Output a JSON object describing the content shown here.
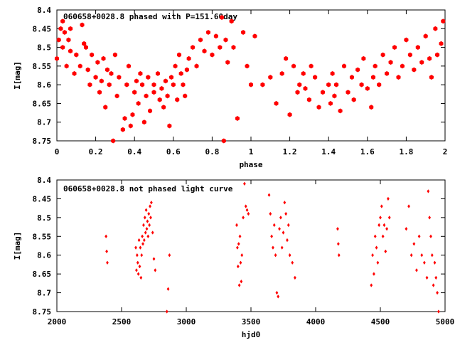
{
  "chart_data": [
    {
      "type": "scatter",
      "title": "060658+0028.8 phased with P=151.60day",
      "xlabel": "phase",
      "ylabel": "I[mag]",
      "xlim": [
        0,
        2
      ],
      "ylim": [
        8.75,
        8.4
      ],
      "y_inverted": true,
      "grid": false,
      "x_ticks": [
        "0",
        "0.2",
        "0.4",
        "0.6",
        "0.8",
        "1",
        "1.2",
        "1.4",
        "1.6",
        "1.8",
        "2"
      ],
      "y_ticks": [
        "8.4",
        "8.45",
        "8.5",
        "8.55",
        "8.6",
        "8.65",
        "8.7",
        "8.75"
      ],
      "marker": "filled hexagon",
      "color": "#ff0000",
      "series": [
        {
          "x": [
            0.0,
            0.01,
            0.02,
            0.03,
            0.03,
            0.04,
            0.05,
            0.06,
            0.07,
            0.07,
            0.09,
            0.1,
            0.12,
            0.13,
            0.14,
            0.15,
            0.16,
            0.17,
            0.18,
            0.2,
            0.21,
            0.22,
            0.23,
            0.24,
            0.25,
            0.26,
            0.27,
            0.28,
            0.29,
            0.3,
            0.31,
            0.32,
            0.34,
            0.35,
            0.36,
            0.37,
            0.38,
            0.39,
            0.4,
            0.41,
            0.42,
            0.43,
            0.44,
            0.45,
            0.46,
            0.47,
            0.48,
            0.5,
            0.5,
            0.52,
            0.53,
            0.54,
            0.55,
            0.56,
            0.57,
            0.58,
            0.59,
            0.6,
            0.61,
            0.62,
            0.63,
            0.64,
            0.65,
            0.66,
            0.67,
            0.68,
            0.7,
            0.72,
            0.74,
            0.76,
            0.78,
            0.8,
            0.82,
            0.84,
            0.85,
            0.86,
            0.87,
            0.88,
            0.9,
            0.91,
            0.93,
            0.96,
            0.98,
            1.0,
            1.02,
            1.06,
            1.1,
            1.13,
            1.16,
            1.18,
            1.2,
            1.22,
            1.24,
            1.25,
            1.27,
            1.28,
            1.3,
            1.31,
            1.33,
            1.35,
            1.37,
            1.4,
            1.41,
            1.42,
            1.43,
            1.44,
            1.46,
            1.48,
            1.5,
            1.52,
            1.53,
            1.55,
            1.57,
            1.58,
            1.6,
            1.62,
            1.63,
            1.64,
            1.66,
            1.68,
            1.7,
            1.72,
            1.74,
            1.76,
            1.78,
            1.8,
            1.82,
            1.84,
            1.86,
            1.88,
            1.9,
            1.92,
            1.93,
            1.95,
            1.96,
            1.98,
            1.99
          ],
          "y": [
            8.53,
            8.48,
            8.45,
            8.43,
            8.5,
            8.46,
            8.55,
            8.48,
            8.51,
            8.45,
            8.57,
            8.52,
            8.55,
            8.44,
            8.49,
            8.5,
            8.56,
            8.6,
            8.52,
            8.58,
            8.54,
            8.62,
            8.59,
            8.53,
            8.66,
            8.56,
            8.6,
            8.57,
            8.75,
            8.52,
            8.63,
            8.58,
            8.72,
            8.69,
            8.6,
            8.55,
            8.71,
            8.68,
            8.62,
            8.59,
            8.65,
            8.57,
            8.6,
            8.7,
            8.63,
            8.58,
            8.67,
            8.62,
            8.6,
            8.57,
            8.64,
            8.61,
            8.66,
            8.59,
            8.63,
            8.71,
            8.58,
            8.6,
            8.55,
            8.64,
            8.52,
            8.57,
            8.6,
            8.63,
            8.56,
            8.53,
            8.5,
            8.55,
            8.48,
            8.51,
            8.46,
            8.52,
            8.47,
            8.5,
            8.42,
            8.75,
            8.48,
            8.54,
            8.43,
            8.5,
            8.69,
            8.46,
            8.55,
            8.6,
            8.47,
            8.6,
            8.58,
            8.65,
            8.57,
            8.53,
            8.68,
            8.55,
            8.62,
            8.6,
            8.57,
            8.61,
            8.64,
            8.55,
            8.58,
            8.66,
            8.62,
            8.6,
            8.65,
            8.57,
            8.63,
            8.6,
            8.67,
            8.55,
            8.62,
            8.58,
            8.64,
            8.56,
            8.6,
            8.53,
            8.61,
            8.66,
            8.58,
            8.55,
            8.6,
            8.52,
            8.57,
            8.54,
            8.5,
            8.58,
            8.55,
            8.48,
            8.52,
            8.56,
            8.5,
            8.54,
            8.47,
            8.53,
            8.58,
            8.45,
            8.52,
            8.49,
            8.43
          ]
        }
      ]
    },
    {
      "type": "scatter",
      "title": "060658+0028.8 not phased light curve",
      "xlabel": "hjd0",
      "ylabel": "I[mag]",
      "xlim": [
        2000,
        5000
      ],
      "ylim": [
        8.75,
        8.4
      ],
      "y_inverted": true,
      "grid": false,
      "x_ticks": [
        "2000",
        "2500",
        "3000",
        "3500",
        "4000",
        "4500",
        "5000"
      ],
      "y_ticks": [
        "8.4",
        "8.45",
        "8.5",
        "8.55",
        "8.6",
        "8.65",
        "8.7",
        "8.75"
      ],
      "marker": "small diamond",
      "color": "#ff0000",
      "series": [
        {
          "x": [
            2380,
            2385,
            2390,
            2610,
            2615,
            2620,
            2625,
            2630,
            2635,
            2640,
            2645,
            2650,
            2655,
            2660,
            2665,
            2670,
            2675,
            2680,
            2685,
            2690,
            2695,
            2700,
            2705,
            2710,
            2715,
            2720,
            2725,
            2730,
            2740,
            2750,
            2760,
            2850,
            2860,
            2870,
            3390,
            3395,
            3400,
            3405,
            3410,
            3415,
            3420,
            3425,
            3430,
            3440,
            3450,
            3460,
            3470,
            3480,
            3640,
            3650,
            3660,
            3670,
            3680,
            3690,
            3700,
            3710,
            3720,
            3730,
            3740,
            3750,
            3760,
            3770,
            3780,
            3790,
            3800,
            3820,
            3840,
            4170,
            4175,
            4180,
            4430,
            4440,
            4450,
            4460,
            4470,
            4480,
            4490,
            4500,
            4510,
            4520,
            4530,
            4540,
            4550,
            4560,
            4570,
            4700,
            4720,
            4740,
            4760,
            4780,
            4800,
            4820,
            4840,
            4860,
            4870,
            4880,
            4890,
            4900,
            4910,
            4920,
            4930,
            4940,
            4950
          ],
          "y": [
            8.55,
            8.59,
            8.62,
            8.58,
            8.64,
            8.6,
            8.62,
            8.65,
            8.56,
            8.63,
            8.58,
            8.66,
            8.6,
            8.55,
            8.57,
            8.52,
            8.56,
            8.5,
            8.54,
            8.48,
            8.53,
            8.51,
            8.55,
            8.49,
            8.52,
            8.47,
            8.5,
            8.46,
            8.54,
            8.61,
            8.64,
            8.75,
            8.69,
            8.6,
            8.52,
            8.58,
            8.63,
            8.57,
            8.68,
            8.55,
            8.62,
            8.67,
            8.6,
            8.5,
            8.41,
            8.47,
            8.48,
            8.49,
            8.44,
            8.49,
            8.55,
            8.58,
            8.52,
            8.6,
            8.7,
            8.71,
            8.53,
            8.5,
            8.58,
            8.54,
            8.46,
            8.49,
            8.56,
            8.52,
            8.6,
            8.62,
            8.66,
            8.53,
            8.57,
            8.6,
            8.68,
            8.6,
            8.65,
            8.55,
            8.58,
            8.62,
            8.52,
            8.5,
            8.47,
            8.55,
            8.52,
            8.59,
            8.53,
            8.45,
            8.5,
            8.53,
            8.47,
            8.6,
            8.57,
            8.64,
            8.55,
            8.6,
            8.62,
            8.66,
            8.43,
            8.5,
            8.55,
            8.6,
            8.68,
            8.62,
            8.66,
            8.7,
            8.75
          ]
        }
      ]
    }
  ]
}
